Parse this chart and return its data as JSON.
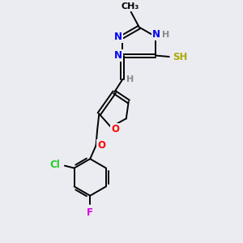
{
  "background_color": "#eaecf2",
  "atom_colors": {
    "N": "#0000ee",
    "O": "#ff0000",
    "S": "#aaaa00",
    "Cl": "#22cc22",
    "F": "#dd00dd",
    "C": "#000000",
    "H": "#888888"
  },
  "lw": 1.4,
  "fs": 8.5
}
